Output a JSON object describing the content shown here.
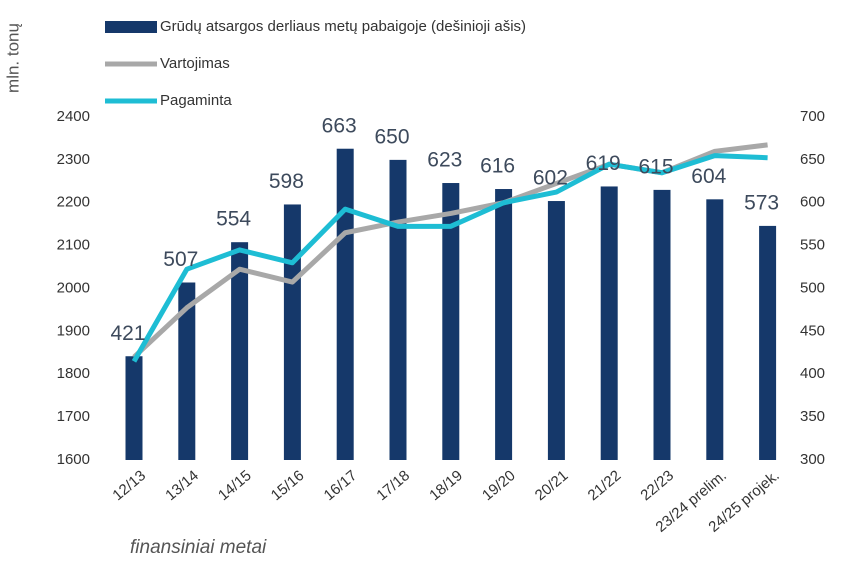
{
  "chart_data": {
    "type": "bar_line",
    "y_label": "mln. tonų",
    "x_label": "finansiniai metai",
    "categories": [
      "12/13",
      "13/14",
      "14/15",
      "15/16",
      "16/17",
      "17/18",
      "18/19",
      "19/20",
      "20/21",
      "21/22",
      "22/23",
      "23/24 prelim.",
      "24/25 projek."
    ],
    "series": [
      {
        "name": "Grūdų atsargos derliaus metų pabaigoje (dešinioji ašis)",
        "color": "#15386a",
        "kind": "bar",
        "axis": "y2",
        "values": [
          421,
          507,
          554,
          598,
          663,
          650,
          623,
          616,
          602,
          619,
          615,
          604,
          573
        ]
      },
      {
        "name": "Vartojimas",
        "color": "#a8a8a8",
        "kind": "line",
        "values": [
          1840,
          1955,
          2045,
          2015,
          2130,
          2155,
          2175,
          2200,
          2245,
          2290,
          2270,
          2320,
          2335
        ]
      },
      {
        "name": "Pagaminta",
        "color": "#1ebdd4",
        "kind": "line",
        "values": [
          1830,
          2045,
          2090,
          2060,
          2185,
          2145,
          2145,
          2200,
          2225,
          2290,
          2270,
          2310,
          2305
        ]
      }
    ],
    "ylim": [
      1600,
      2400
    ],
    "yticks": [
      1600,
      1700,
      1800,
      1900,
      2000,
      2100,
      2200,
      2300,
      2400
    ],
    "y2lim": [
      300,
      700
    ],
    "y2ticks": [
      300,
      350,
      400,
      450,
      500,
      550,
      600,
      650,
      700
    ]
  }
}
